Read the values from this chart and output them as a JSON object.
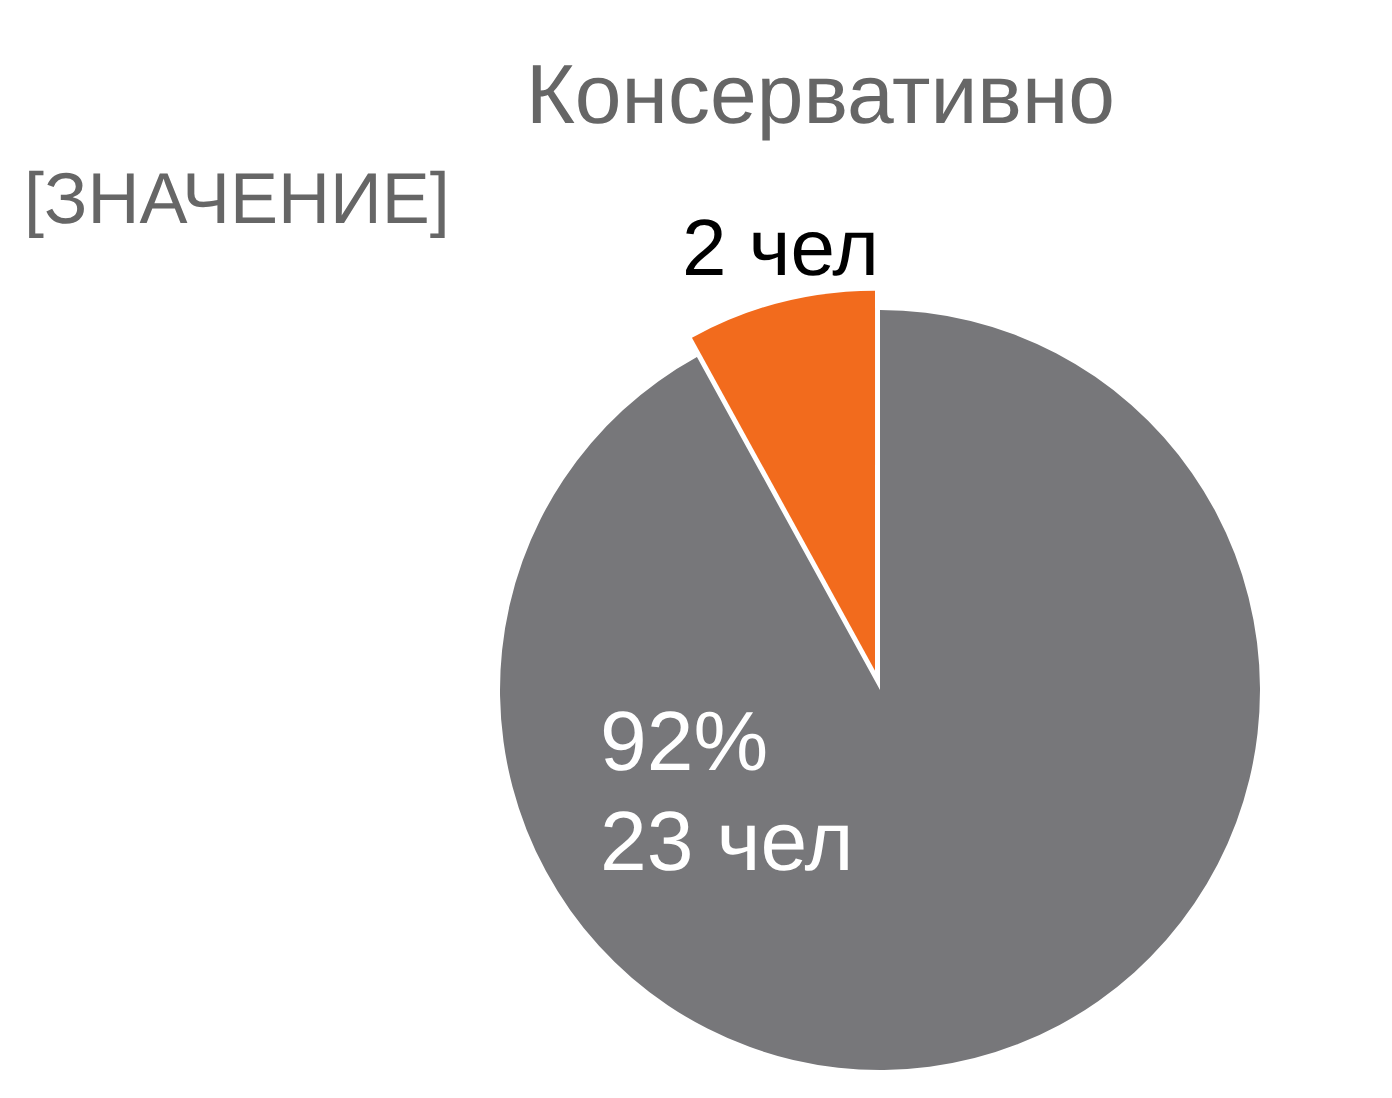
{
  "chart_data": {
    "type": "pie",
    "categories": [
      null,
      "Консервативно"
    ],
    "values": [
      23,
      2
    ],
    "colors": [
      "#77777a",
      "#f26b1d"
    ],
    "value_labels": [
      "92%\n23 чел",
      "[ЗНАЧЕНИЕ]\n2 чел"
    ]
  }
}
